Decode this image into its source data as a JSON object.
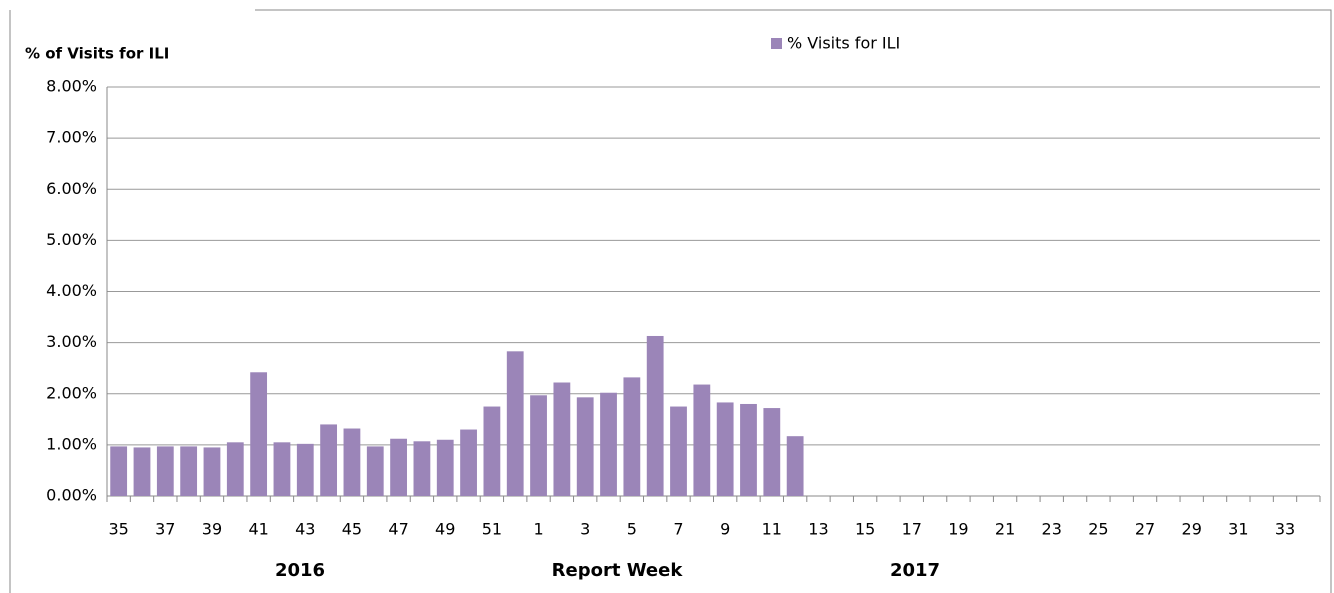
{
  "chart_data": {
    "type": "bar",
    "y_axis_label": "% of Visits for ILI",
    "x_axis_label": "Report Week",
    "annotations": [
      "2016",
      "2017"
    ],
    "categories": [
      "35",
      null,
      "37",
      null,
      "39",
      null,
      "41",
      null,
      "43",
      null,
      "45",
      null,
      "47",
      null,
      "49",
      null,
      "51",
      null,
      "1",
      null,
      "3",
      null,
      "5",
      null,
      "7",
      null,
      "9",
      null,
      "11",
      null,
      "13",
      null,
      "15",
      null,
      "17",
      null,
      "19",
      null,
      "21",
      null,
      "23",
      null,
      "25",
      null,
      "27",
      null,
      "29",
      null,
      "31",
      null,
      "33",
      null
    ],
    "series": [
      {
        "name": "% Visits for ILI",
        "color": "#9b85b8",
        "values": [
          0.97,
          0.95,
          0.97,
          0.97,
          0.95,
          1.05,
          2.42,
          1.05,
          1.02,
          1.4,
          1.32,
          0.97,
          1.12,
          1.07,
          1.1,
          1.3,
          1.75,
          2.83,
          1.97,
          2.22,
          1.93,
          2.02,
          2.32,
          3.13,
          1.75,
          2.18,
          1.83,
          1.8,
          1.72,
          1.17,
          null,
          null,
          null,
          null,
          null,
          null,
          null,
          null,
          null,
          null,
          null,
          null,
          null,
          null,
          null,
          null,
          null,
          null,
          null,
          null,
          null,
          null
        ]
      }
    ],
    "ylim": [
      0,
      8
    ],
    "yticks": [
      {
        "value": 0,
        "label": "0.00%"
      },
      {
        "value": 1,
        "label": "1.00%"
      },
      {
        "value": 2,
        "label": "2.00%"
      },
      {
        "value": 3,
        "label": "3.00%"
      },
      {
        "value": 4,
        "label": "4.00%"
      },
      {
        "value": 5,
        "label": "5.00%"
      },
      {
        "value": 6,
        "label": "6.00%"
      },
      {
        "value": 7,
        "label": "7.00%"
      },
      {
        "value": 8,
        "label": "8.00%"
      }
    ],
    "grid": true,
    "legend_position": "top"
  }
}
